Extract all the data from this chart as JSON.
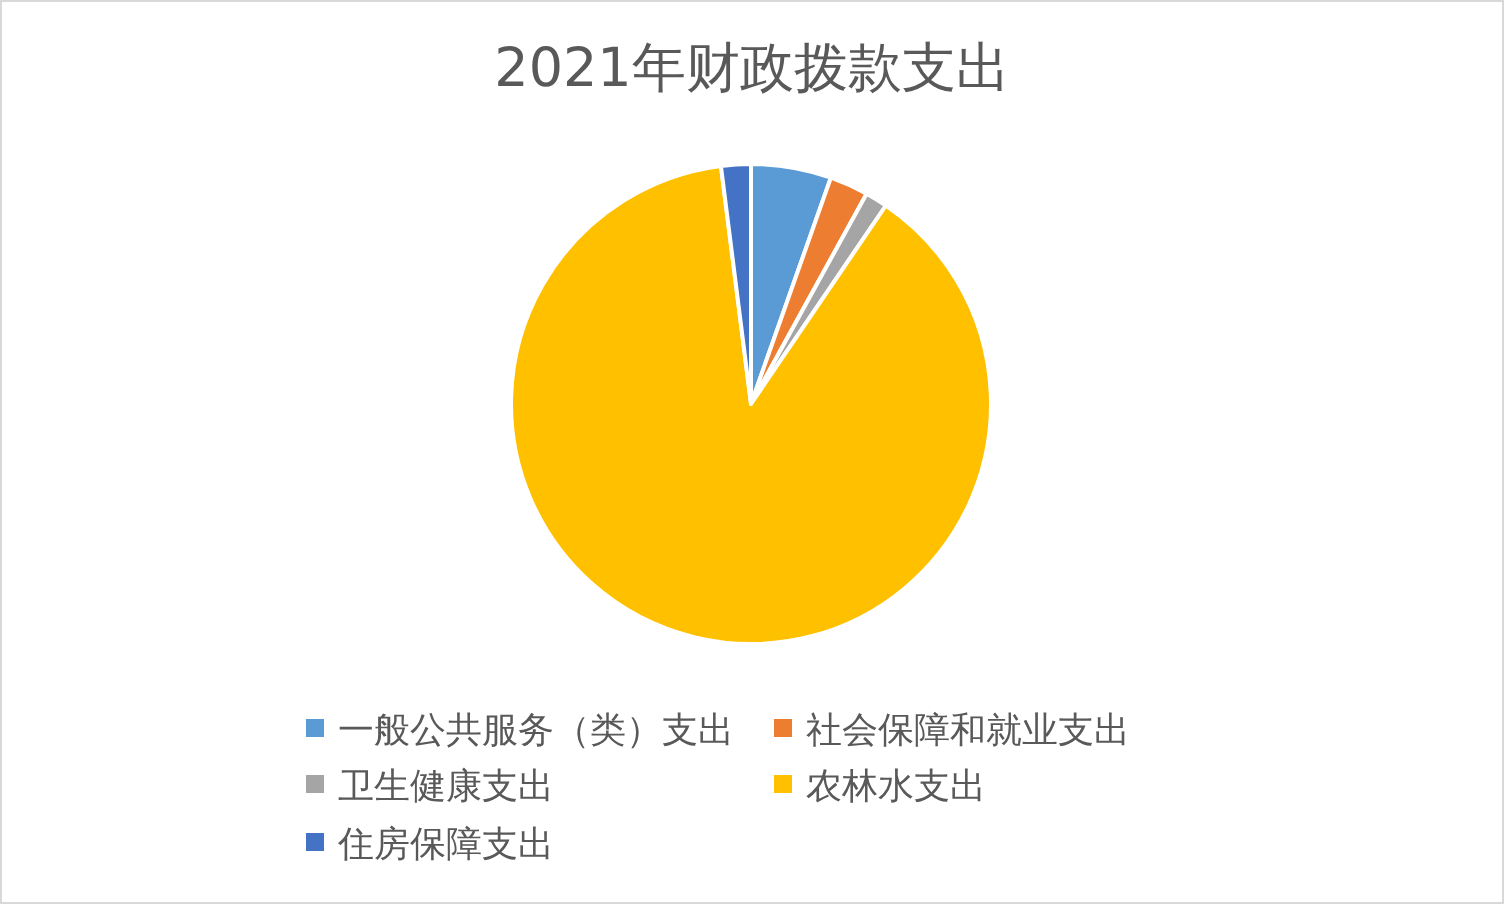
{
  "chart_data": {
    "type": "pie",
    "title": "2021年财政拨款支出",
    "categories": [
      "一般公共服务（类）支出",
      "社会保障和就业支出",
      "卫生健康支出",
      "农林水支出",
      "住房保障支出"
    ],
    "values": [
      5.4,
      2.6,
      1.5,
      88.5,
      2.0
    ],
    "colors": [
      "#5b9bd5",
      "#ed7d31",
      "#a5a5a5",
      "#ffc000",
      "#4472c4"
    ],
    "legend": "bottom"
  }
}
